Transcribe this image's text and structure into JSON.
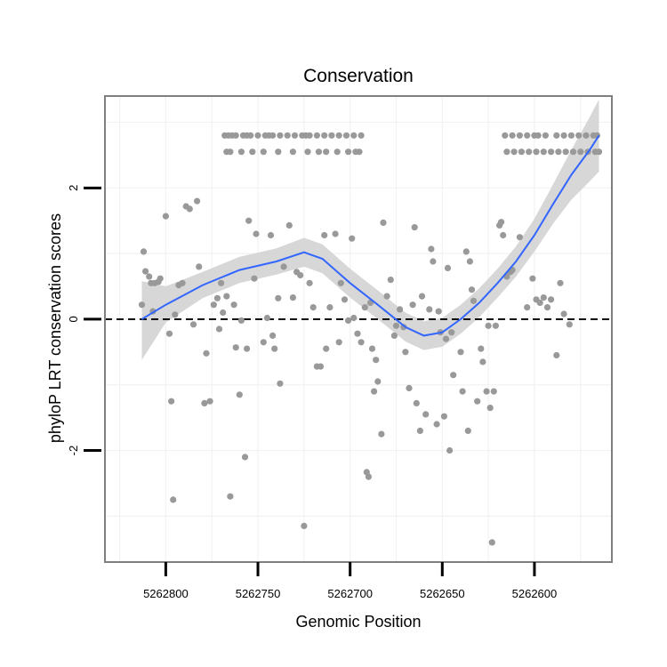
{
  "chart_data": {
    "type": "scatter",
    "title": "Conservation",
    "xlabel": "Genomic Position",
    "ylabel": "phyloP LRT conservation scores",
    "x_reversed": true,
    "xlim": [
      5262833,
      5262558
    ],
    "ylim": [
      -3.7,
      3.4
    ],
    "x_ticks": [
      5262800,
      5262750,
      5262700,
      5262650,
      5262600
    ],
    "x_tick_labels": [
      "5262800",
      "5262750",
      "5262700",
      "5262650",
      "5262600"
    ],
    "y_ticks": [
      -2,
      0,
      2
    ],
    "y_tick_labels": [
      "-2",
      "0",
      "2"
    ],
    "grid": true,
    "reference_line": {
      "y": 0,
      "style": "dashed",
      "color": "#000000"
    },
    "colors": {
      "points": "#999999",
      "smooth_line": "#3366ff",
      "confidence_band": "#d3d3d3",
      "panel_border": "#7f7f7f",
      "grid": "#f2f2f2"
    },
    "series": [
      {
        "kind": "points",
        "points": [
          {
            "x": 5262813,
            "y": 0.22
          },
          {
            "x": 5262812,
            "y": 1.03
          },
          {
            "x": 5262811,
            "y": 0.73
          },
          {
            "x": 5262809,
            "y": 0.65
          },
          {
            "x": 5262808,
            "y": 0.55
          },
          {
            "x": 5262807,
            "y": 0.12
          },
          {
            "x": 5262806,
            "y": 0.55
          },
          {
            "x": 5262804,
            "y": 0.57
          },
          {
            "x": 5262803,
            "y": 0.62
          },
          {
            "x": 5262800,
            "y": 1.57
          },
          {
            "x": 5262798,
            "y": -0.22
          },
          {
            "x": 5262797,
            "y": -1.25
          },
          {
            "x": 5262796,
            "y": -2.75
          },
          {
            "x": 5262795,
            "y": 0.07
          },
          {
            "x": 5262793,
            "y": 0.52
          },
          {
            "x": 5262791,
            "y": 0.55
          },
          {
            "x": 5262789,
            "y": 1.72
          },
          {
            "x": 5262787,
            "y": 1.68
          },
          {
            "x": 5262785,
            "y": -0.08
          },
          {
            "x": 5262783,
            "y": 1.8
          },
          {
            "x": 5262782,
            "y": 0.8
          },
          {
            "x": 5262779,
            "y": -1.28
          },
          {
            "x": 5262778,
            "y": -0.52
          },
          {
            "x": 5262776,
            "y": -1.25
          },
          {
            "x": 5262774,
            "y": 0.22
          },
          {
            "x": 5262772,
            "y": 0.32
          },
          {
            "x": 5262771,
            "y": -0.15
          },
          {
            "x": 5262770,
            "y": 0.55
          },
          {
            "x": 5262769,
            "y": 0.1
          },
          {
            "x": 5262767,
            "y": 0.35
          },
          {
            "x": 5262765,
            "y": -2.7
          },
          {
            "x": 5262763,
            "y": 0.22
          },
          {
            "x": 5262762,
            "y": -0.43
          },
          {
            "x": 5262760,
            "y": -1.15
          },
          {
            "x": 5262759,
            "y": -0.02
          },
          {
            "x": 5262757,
            "y": -2.1
          },
          {
            "x": 5262756,
            "y": -0.45
          },
          {
            "x": 5262755,
            "y": 1.5
          },
          {
            "x": 5262752,
            "y": 0.62
          },
          {
            "x": 5262751,
            "y": 1.3
          },
          {
            "x": 5262747,
            "y": -0.35
          },
          {
            "x": 5262745,
            "y": 0.02
          },
          {
            "x": 5262743,
            "y": 1.28
          },
          {
            "x": 5262742,
            "y": -0.25
          },
          {
            "x": 5262741,
            "y": -0.45
          },
          {
            "x": 5262739,
            "y": 0.32
          },
          {
            "x": 5262738,
            "y": -0.98
          },
          {
            "x": 5262736,
            "y": 0.8
          },
          {
            "x": 5262733,
            "y": 1.43
          },
          {
            "x": 5262731,
            "y": 0.33
          },
          {
            "x": 5262729,
            "y": 0.72
          },
          {
            "x": 5262727,
            "y": 0.67
          },
          {
            "x": 5262725,
            "y": -3.15
          },
          {
            "x": 5262722,
            "y": 0.55
          },
          {
            "x": 5262720,
            "y": 0.18
          },
          {
            "x": 5262718,
            "y": -0.72
          },
          {
            "x": 5262716,
            "y": -0.72
          },
          {
            "x": 5262714,
            "y": 1.28
          },
          {
            "x": 5262713,
            "y": -0.45
          },
          {
            "x": 5262711,
            "y": 0.18
          },
          {
            "x": 5262708,
            "y": 1.3
          },
          {
            "x": 5262706,
            "y": -0.35
          },
          {
            "x": 5262705,
            "y": 0.55
          },
          {
            "x": 5262703,
            "y": 0.3
          },
          {
            "x": 5262701,
            "y": -0.02
          },
          {
            "x": 5262699,
            "y": 1.23
          },
          {
            "x": 5262698,
            "y": 0.02
          },
          {
            "x": 5262696,
            "y": -0.22
          },
          {
            "x": 5262694,
            "y": -0.35
          },
          {
            "x": 5262692,
            "y": 0.18
          },
          {
            "x": 5262691,
            "y": -2.33
          },
          {
            "x": 5262690,
            "y": -2.4
          },
          {
            "x": 5262689,
            "y": 0.25
          },
          {
            "x": 5262688,
            "y": -0.45
          },
          {
            "x": 5262687,
            "y": -1.1
          },
          {
            "x": 5262686,
            "y": -0.62
          },
          {
            "x": 5262685,
            "y": -0.95
          },
          {
            "x": 5262683,
            "y": -1.75
          },
          {
            "x": 5262682,
            "y": 1.47
          },
          {
            "x": 5262680,
            "y": 0.35
          },
          {
            "x": 5262678,
            "y": 0.6
          },
          {
            "x": 5262676,
            "y": -0.25
          },
          {
            "x": 5262675,
            "y": -0.1
          },
          {
            "x": 5262673,
            "y": 0.15
          },
          {
            "x": 5262671,
            "y": -0.12
          },
          {
            "x": 5262670,
            "y": -0.5
          },
          {
            "x": 5262668,
            "y": -1.05
          },
          {
            "x": 5262666,
            "y": 0.22
          },
          {
            "x": 5262665,
            "y": 1.4
          },
          {
            "x": 5262664,
            "y": -1.28
          },
          {
            "x": 5262662,
            "y": -1.7
          },
          {
            "x": 5262661,
            "y": 0.35
          },
          {
            "x": 5262659,
            "y": -1.45
          },
          {
            "x": 5262657,
            "y": 0.15
          },
          {
            "x": 5262656,
            "y": 1.07
          },
          {
            "x": 5262655,
            "y": 0.88
          },
          {
            "x": 5262653,
            "y": -1.6
          },
          {
            "x": 5262652,
            "y": 0.12
          },
          {
            "x": 5262651,
            "y": -0.2
          },
          {
            "x": 5262649,
            "y": -1.48
          },
          {
            "x": 5262648,
            "y": -0.3
          },
          {
            "x": 5262647,
            "y": 0.78
          },
          {
            "x": 5262646,
            "y": -2.0
          },
          {
            "x": 5262645,
            "y": -0.2
          },
          {
            "x": 5262644,
            "y": -0.85
          },
          {
            "x": 5262640,
            "y": -0.5
          },
          {
            "x": 5262639,
            "y": -1.1
          },
          {
            "x": 5262637,
            "y": 1.03
          },
          {
            "x": 5262636,
            "y": -1.7
          },
          {
            "x": 5262635,
            "y": 0.88
          },
          {
            "x": 5262634,
            "y": 0.45
          },
          {
            "x": 5262633,
            "y": 0.28
          },
          {
            "x": 5262631,
            "y": -1.25
          },
          {
            "x": 5262629,
            "y": -0.45
          },
          {
            "x": 5262628,
            "y": -0.65
          },
          {
            "x": 5262626,
            "y": -1.1
          },
          {
            "x": 5262625,
            "y": -0.1
          },
          {
            "x": 5262624,
            "y": -1.35
          },
          {
            "x": 5262623,
            "y": -3.4
          },
          {
            "x": 5262622,
            "y": -1.1
          },
          {
            "x": 5262621,
            "y": -0.1
          },
          {
            "x": 5262619,
            "y": 1.43
          },
          {
            "x": 5262618,
            "y": 1.48
          },
          {
            "x": 5262617,
            "y": 1.28
          },
          {
            "x": 5262615,
            "y": 0.65
          },
          {
            "x": 5262613,
            "y": 0.72
          },
          {
            "x": 5262612,
            "y": 0.75
          },
          {
            "x": 5262608,
            "y": 1.25
          },
          {
            "x": 5262604,
            "y": 0.18
          },
          {
            "x": 5262601,
            "y": 0.62
          },
          {
            "x": 5262599,
            "y": 0.3
          },
          {
            "x": 5262597,
            "y": 0.25
          },
          {
            "x": 5262595,
            "y": 0.33
          },
          {
            "x": 5262593,
            "y": 0.18
          },
          {
            "x": 5262591,
            "y": 0.3
          },
          {
            "x": 5262588,
            "y": -0.55
          },
          {
            "x": 5262586,
            "y": 0.55
          },
          {
            "x": 5262584,
            "y": 0.08
          },
          {
            "x": 5262581,
            "y": -0.08
          },
          {
            "x": 5262768,
            "y": 2.8
          },
          {
            "x": 5262766,
            "y": 2.8
          },
          {
            "x": 5262764,
            "y": 2.8
          },
          {
            "x": 5262762,
            "y": 2.8
          },
          {
            "x": 5262758,
            "y": 2.8
          },
          {
            "x": 5262756,
            "y": 2.8
          },
          {
            "x": 5262754,
            "y": 2.8
          },
          {
            "x": 5262750,
            "y": 2.8
          },
          {
            "x": 5262746,
            "y": 2.8
          },
          {
            "x": 5262744,
            "y": 2.8
          },
          {
            "x": 5262742,
            "y": 2.8
          },
          {
            "x": 5262738,
            "y": 2.8
          },
          {
            "x": 5262734,
            "y": 2.8
          },
          {
            "x": 5262730,
            "y": 2.8
          },
          {
            "x": 5262726,
            "y": 2.8
          },
          {
            "x": 5262724,
            "y": 2.8
          },
          {
            "x": 5262722,
            "y": 2.8
          },
          {
            "x": 5262718,
            "y": 2.8
          },
          {
            "x": 5262714,
            "y": 2.8
          },
          {
            "x": 5262710,
            "y": 2.8
          },
          {
            "x": 5262706,
            "y": 2.8
          },
          {
            "x": 5262702,
            "y": 2.8
          },
          {
            "x": 5262698,
            "y": 2.8
          },
          {
            "x": 5262694,
            "y": 2.8
          },
          {
            "x": 5262767,
            "y": 2.55
          },
          {
            "x": 5262765,
            "y": 2.55
          },
          {
            "x": 5262759,
            "y": 2.55
          },
          {
            "x": 5262753,
            "y": 2.55
          },
          {
            "x": 5262747,
            "y": 2.55
          },
          {
            "x": 5262739,
            "y": 2.55
          },
          {
            "x": 5262731,
            "y": 2.55
          },
          {
            "x": 5262723,
            "y": 2.55
          },
          {
            "x": 5262717,
            "y": 2.55
          },
          {
            "x": 5262713,
            "y": 2.55
          },
          {
            "x": 5262707,
            "y": 2.55
          },
          {
            "x": 5262701,
            "y": 2.55
          },
          {
            "x": 5262697,
            "y": 2.55
          },
          {
            "x": 5262695,
            "y": 2.55
          },
          {
            "x": 5262616,
            "y": 2.8
          },
          {
            "x": 5262612,
            "y": 2.8
          },
          {
            "x": 5262608,
            "y": 2.8
          },
          {
            "x": 5262604,
            "y": 2.8
          },
          {
            "x": 5262600,
            "y": 2.8
          },
          {
            "x": 5262598,
            "y": 2.8
          },
          {
            "x": 5262594,
            "y": 2.8
          },
          {
            "x": 5262588,
            "y": 2.8
          },
          {
            "x": 5262584,
            "y": 2.8
          },
          {
            "x": 5262580,
            "y": 2.8
          },
          {
            "x": 5262576,
            "y": 2.8
          },
          {
            "x": 5262572,
            "y": 2.8
          },
          {
            "x": 5262568,
            "y": 2.8
          },
          {
            "x": 5262566,
            "y": 2.8
          },
          {
            "x": 5262615,
            "y": 2.55
          },
          {
            "x": 5262611,
            "y": 2.55
          },
          {
            "x": 5262607,
            "y": 2.55
          },
          {
            "x": 5262603,
            "y": 2.55
          },
          {
            "x": 5262599,
            "y": 2.55
          },
          {
            "x": 5262595,
            "y": 2.55
          },
          {
            "x": 5262591,
            "y": 2.55
          },
          {
            "x": 5262587,
            "y": 2.55
          },
          {
            "x": 5262583,
            "y": 2.55
          },
          {
            "x": 5262579,
            "y": 2.55
          },
          {
            "x": 5262575,
            "y": 2.55
          },
          {
            "x": 5262571,
            "y": 2.55
          },
          {
            "x": 5262567,
            "y": 2.55
          },
          {
            "x": 5262565,
            "y": 2.55
          }
        ]
      },
      {
        "kind": "smooth",
        "points": [
          {
            "x": 5262813,
            "y": 0.0,
            "lo": -0.62,
            "hi": 0.58
          },
          {
            "x": 5262800,
            "y": 0.22,
            "lo": -0.05,
            "hi": 0.5
          },
          {
            "x": 5262780,
            "y": 0.52,
            "lo": 0.32,
            "hi": 0.72
          },
          {
            "x": 5262760,
            "y": 0.75,
            "lo": 0.55,
            "hi": 0.95
          },
          {
            "x": 5262740,
            "y": 0.88,
            "lo": 0.68,
            "hi": 1.08
          },
          {
            "x": 5262725,
            "y": 1.02,
            "lo": 0.8,
            "hi": 1.24
          },
          {
            "x": 5262715,
            "y": 0.92,
            "lo": 0.7,
            "hi": 1.14
          },
          {
            "x": 5262700,
            "y": 0.55,
            "lo": 0.33,
            "hi": 0.77
          },
          {
            "x": 5262685,
            "y": 0.22,
            "lo": 0.0,
            "hi": 0.44
          },
          {
            "x": 5262670,
            "y": -0.12,
            "lo": -0.34,
            "hi": 0.1
          },
          {
            "x": 5262660,
            "y": -0.25,
            "lo": -0.47,
            "hi": -0.03
          },
          {
            "x": 5262650,
            "y": -0.2,
            "lo": -0.42,
            "hi": 0.02
          },
          {
            "x": 5262640,
            "y": 0.0,
            "lo": -0.22,
            "hi": 0.22
          },
          {
            "x": 5262630,
            "y": 0.25,
            "lo": 0.03,
            "hi": 0.47
          },
          {
            "x": 5262620,
            "y": 0.55,
            "lo": 0.33,
            "hi": 0.77
          },
          {
            "x": 5262610,
            "y": 0.88,
            "lo": 0.65,
            "hi": 1.11
          },
          {
            "x": 5262600,
            "y": 1.28,
            "lo": 1.03,
            "hi": 1.53
          },
          {
            "x": 5262590,
            "y": 1.75,
            "lo": 1.45,
            "hi": 2.05
          },
          {
            "x": 5262580,
            "y": 2.2,
            "lo": 1.82,
            "hi": 2.58
          },
          {
            "x": 5262570,
            "y": 2.58,
            "lo": 2.1,
            "hi": 3.08
          },
          {
            "x": 5262565,
            "y": 2.8,
            "lo": 2.25,
            "hi": 3.35
          }
        ]
      }
    ]
  }
}
